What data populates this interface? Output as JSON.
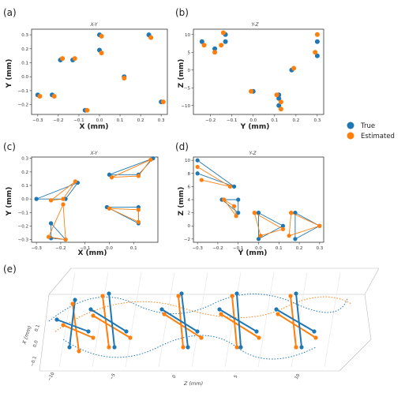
{
  "colors": {
    "true": "#1f77b4",
    "estimated": "#ff7f0e"
  },
  "legend": {
    "placement": "right",
    "items": [
      {
        "name": "True",
        "color": "#1f77b4"
      },
      {
        "name": "Estimated",
        "color": "#ff7f0e"
      }
    ]
  },
  "chart_data": [
    {
      "label": "(a)",
      "type": "scatter",
      "title": "X-Y",
      "xlabel": "X (mm)",
      "ylabel": "Y (mm)",
      "xlim": [
        -0.33,
        0.33
      ],
      "ylim": [
        -0.27,
        0.34
      ],
      "xticks": [
        -0.3,
        -0.2,
        -0.1,
        0.0,
        0.1,
        0.2,
        0.3
      ],
      "xtick_labels": [
        "−0.3",
        "−0.2",
        "−0.1",
        "0.0",
        "0.1",
        "0.2",
        "0.3"
      ],
      "yticks": [
        -0.2,
        -0.1,
        0.0,
        0.1,
        0.2,
        0.3
      ],
      "ytick_labels": [
        "−0.2",
        "−0.1",
        "0.0",
        "0.1",
        "0.2",
        "0.3"
      ],
      "series": [
        {
          "name": "True",
          "x": [
            0.0,
            0.24,
            -0.13,
            -0.19,
            0.0,
            0.12,
            -0.3,
            -0.23,
            0.3,
            -0.07
          ],
          "y": [
            0.3,
            0.3,
            0.12,
            0.12,
            0.19,
            0.0,
            -0.13,
            -0.13,
            -0.18,
            -0.24
          ]
        },
        {
          "name": "Estimated",
          "x": [
            0.01,
            0.25,
            -0.12,
            -0.18,
            0.01,
            0.12,
            -0.29,
            -0.22,
            0.31,
            -0.06
          ],
          "y": [
            0.29,
            0.28,
            0.13,
            0.13,
            0.17,
            -0.01,
            -0.14,
            -0.14,
            -0.18,
            -0.24
          ]
        }
      ]
    },
    {
      "label": "(b)",
      "type": "scatter",
      "title": "Y-Z",
      "xlabel": "Y (mm)",
      "ylabel": "Z (mm)",
      "xlim": [
        -0.28,
        0.33
      ],
      "ylim": [
        -12.5,
        11.5
      ],
      "xticks": [
        -0.2,
        -0.1,
        0.0,
        0.1,
        0.2,
        0.3
      ],
      "xtick_labels": [
        "−0.2",
        "−0.1",
        "0.0",
        "0.1",
        "0.2",
        "0.3"
      ],
      "yticks": [
        -10,
        -5,
        0,
        5,
        10
      ],
      "ytick_labels": [
        "−10",
        "−5",
        "0",
        "5",
        "10"
      ],
      "series": [
        {
          "name": "True",
          "x": [
            -0.24,
            -0.18,
            -0.13,
            -0.13,
            0.3,
            0.3,
            0.18,
            0.0,
            0.12,
            0.12,
            0.12
          ],
          "y": [
            8,
            6,
            10,
            8,
            8,
            4,
            0,
            -6,
            -7,
            -8,
            -10
          ]
        },
        {
          "name": "Estimated",
          "x": [
            -0.23,
            -0.18,
            -0.14,
            -0.15,
            0.3,
            0.29,
            0.19,
            -0.01,
            0.11,
            0.13,
            0.13
          ],
          "y": [
            7,
            5,
            10.5,
            7,
            10,
            5,
            0.5,
            -6,
            -7,
            -9,
            -11
          ]
        }
      ]
    },
    {
      "label": "(c)",
      "type": "line",
      "title": "X-Y",
      "xlabel": "X (mm)",
      "ylabel": "Y (mm)",
      "xlim": [
        -0.32,
        0.2
      ],
      "ylim": [
        -0.32,
        0.31
      ],
      "xticks": [
        -0.3,
        -0.2,
        -0.1,
        0.0,
        0.1
      ],
      "xtick_labels": [
        "−0.3",
        "−0.2",
        "−0.1",
        "0.0",
        "0.1"
      ],
      "yticks": [
        -0.3,
        -0.2,
        -0.1,
        0.0,
        0.1,
        0.2,
        0.3
      ],
      "ytick_labels": [
        "−0.3",
        "−0.2",
        "−0.1",
        "0.0",
        "0.1",
        "0.2",
        "0.3"
      ],
      "series": [
        {
          "name": "True",
          "groups": [
            {
              "x": [
                -0.3,
                -0.13,
                -0.18,
                -0.3
              ],
              "y": [
                0.0,
                0.12,
                0.0,
                0.0
              ]
            },
            {
              "x": [
                0.0,
                0.18,
                0.12,
                0.0
              ],
              "y": [
                0.18,
                0.3,
                0.18,
                0.18
              ]
            },
            {
              "x": [
                -0.24,
                -0.24,
                -0.18,
                -0.24
              ],
              "y": [
                -0.18,
                -0.29,
                -0.3,
                -0.18
              ]
            },
            {
              "x": [
                -0.01,
                0.12,
                0.12,
                -0.01
              ],
              "y": [
                -0.06,
                -0.06,
                -0.18,
                -0.06
              ]
            }
          ]
        },
        {
          "name": "Estimated",
          "groups": [
            {
              "x": [
                -0.24,
                -0.14,
                -0.19,
                -0.24
              ],
              "y": [
                -0.01,
                0.13,
                0.0,
                -0.01
              ]
            },
            {
              "x": [
                0.01,
                0.17,
                0.12,
                0.01
              ],
              "y": [
                0.16,
                0.29,
                0.17,
                0.16
              ]
            },
            {
              "x": [
                -0.19,
                -0.25,
                -0.18,
                -0.19
              ],
              "y": [
                -0.04,
                -0.28,
                -0.3,
                -0.04
              ]
            },
            {
              "x": [
                0.0,
                0.12,
                0.12,
                0.0
              ],
              "y": [
                -0.07,
                -0.08,
                -0.17,
                -0.07
              ]
            }
          ]
        }
      ]
    },
    {
      "label": "(d)",
      "type": "line",
      "title": "Y-Z",
      "xlabel": "Y (mm)",
      "ylabel": "Z (mm)",
      "xlim": [
        -0.32,
        0.32
      ],
      "ylim": [
        -2.5,
        10.5
      ],
      "xticks": [
        -0.3,
        -0.2,
        -0.1,
        0.0,
        0.1,
        0.2,
        0.3
      ],
      "xtick_labels": [
        "−0.3",
        "−0.2",
        "−0.1",
        "0.0",
        "0.1",
        "0.2",
        "0.3"
      ],
      "yticks": [
        -2,
        0,
        2,
        4,
        6,
        8,
        10
      ],
      "ytick_labels": [
        "−2",
        "0",
        "2",
        "4",
        "6",
        "8",
        "10"
      ],
      "series": [
        {
          "name": "True",
          "groups": [
            {
              "x": [
                -0.3,
                -0.12,
                -0.3
              ],
              "y": [
                10,
                6,
                8
              ]
            },
            {
              "x": [
                -0.18,
                -0.1,
                -0.1,
                -0.18
              ],
              "y": [
                4,
                4,
                2,
                4
              ]
            },
            {
              "x": [
                0.0,
                0.12,
                0.0,
                0.0
              ],
              "y": [
                2,
                0,
                -2,
                2
              ]
            },
            {
              "x": [
                0.18,
                0.3,
                0.18,
                0.18
              ],
              "y": [
                2,
                0,
                -2,
                2
              ]
            }
          ]
        },
        {
          "name": "Estimated",
          "groups": [
            {
              "x": [
                -0.3,
                -0.14,
                -0.28
              ],
              "y": [
                9,
                6,
                7
              ]
            },
            {
              "x": [
                -0.17,
                -0.12,
                -0.11,
                -0.17
              ],
              "y": [
                4,
                3,
                1.5,
                4
              ]
            },
            {
              "x": [
                -0.02,
                0.12,
                0.01,
                -0.02
              ],
              "y": [
                2,
                -0.5,
                -1.5,
                2
              ]
            },
            {
              "x": [
                0.16,
                0.3,
                0.15,
                0.16
              ],
              "y": [
                2,
                0,
                -1.5,
                2
              ]
            }
          ]
        }
      ]
    }
  ],
  "panel_e": {
    "label": "(e)",
    "zlabel": "Z (mm)",
    "side_axis_label": "X (mm)",
    "side_ticks": [
      "0.1",
      "0.0",
      "−0.1"
    ],
    "bottom_ticks": [
      "−10",
      "−5",
      "0",
      "5",
      "10"
    ]
  }
}
